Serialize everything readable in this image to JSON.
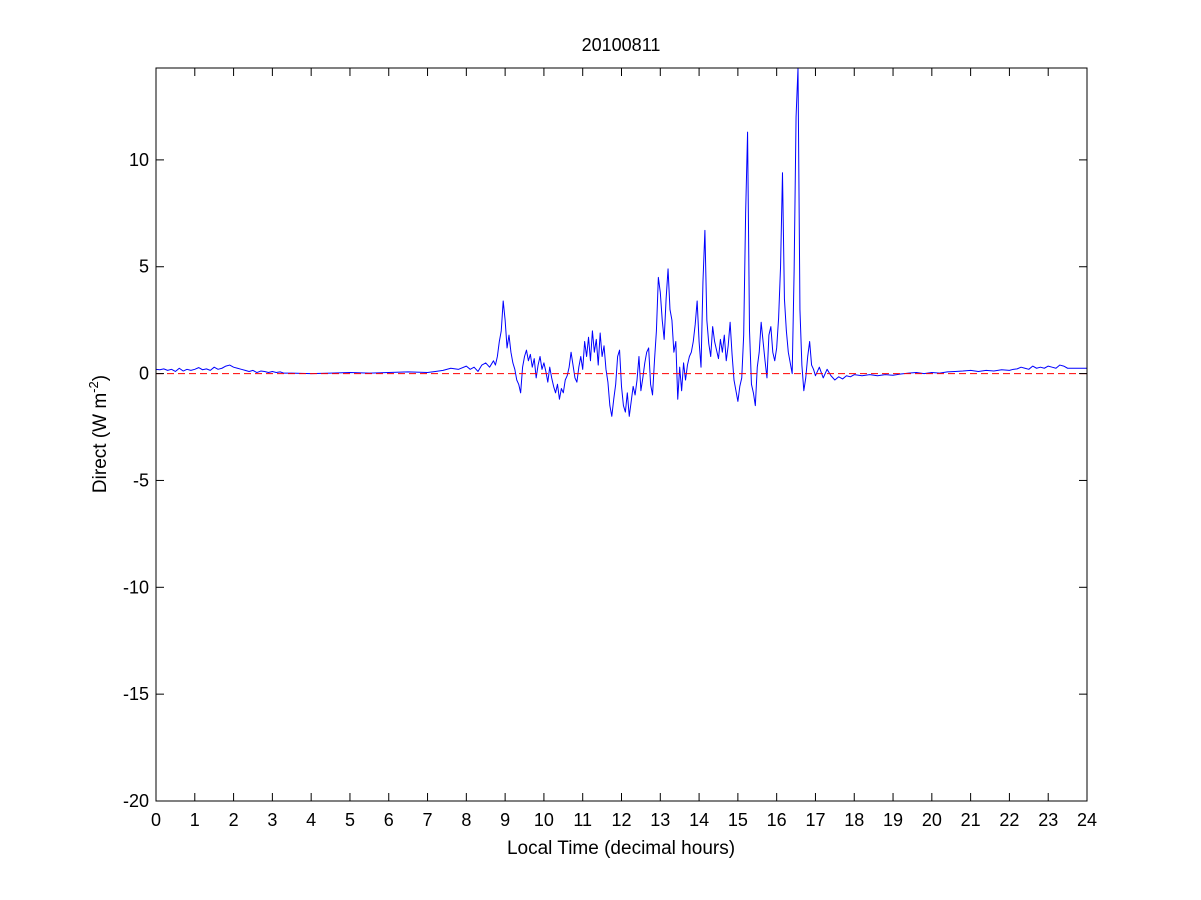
{
  "chart_data": {
    "type": "line",
    "title": "20100811",
    "xlabel": "Local Time (decimal hours)",
    "ylabel": {
      "base": "Direct (W m",
      "superscript": "-2",
      "suffix": ")"
    },
    "xlim": [
      0,
      24
    ],
    "ylim": [
      -20,
      14.3
    ],
    "xticks": [
      0,
      1,
      2,
      3,
      4,
      5,
      6,
      7,
      8,
      9,
      10,
      11,
      12,
      13,
      14,
      15,
      16,
      17,
      18,
      19,
      20,
      21,
      22,
      23,
      24
    ],
    "yticks": [
      -20,
      -15,
      -10,
      -5,
      0,
      5,
      10
    ],
    "grid": false,
    "colors": {
      "series": "#0000ff",
      "reference": "#ff0000",
      "axes": "#000000",
      "background": "#ffffff"
    },
    "series": [
      {
        "style": "solid",
        "x": [
          0,
          0.1,
          0.2,
          0.3,
          0.4,
          0.5,
          0.6,
          0.7,
          0.8,
          0.9,
          1.0,
          1.1,
          1.2,
          1.3,
          1.4,
          1.5,
          1.6,
          1.7,
          1.8,
          1.9,
          2.0,
          2.1,
          2.2,
          2.3,
          2.4,
          2.5,
          2.6,
          2.7,
          2.8,
          2.9,
          3.0,
          3.1,
          3.2,
          3.3,
          3.5,
          4.0,
          4.5,
          5.0,
          5.5,
          6.0,
          6.5,
          7.0,
          7.2,
          7.4,
          7.6,
          7.8,
          8.0,
          8.1,
          8.2,
          8.3,
          8.4,
          8.5,
          8.6,
          8.7,
          8.75,
          8.8,
          8.85,
          8.9,
          8.95,
          9.0,
          9.05,
          9.1,
          9.15,
          9.2,
          9.25,
          9.3,
          9.35,
          9.4,
          9.45,
          9.5,
          9.55,
          9.6,
          9.65,
          9.7,
          9.75,
          9.8,
          9.85,
          9.9,
          9.95,
          10.0,
          10.05,
          10.1,
          10.15,
          10.2,
          10.25,
          10.3,
          10.35,
          10.4,
          10.45,
          10.5,
          10.55,
          10.6,
          10.65,
          10.7,
          10.75,
          10.8,
          10.85,
          10.9,
          10.95,
          11.0,
          11.05,
          11.1,
          11.15,
          11.2,
          11.25,
          11.3,
          11.35,
          11.4,
          11.45,
          11.5,
          11.55,
          11.6,
          11.65,
          11.7,
          11.75,
          11.8,
          11.85,
          11.9,
          11.95,
          12.0,
          12.05,
          12.1,
          12.15,
          12.2,
          12.25,
          12.3,
          12.35,
          12.4,
          12.45,
          12.5,
          12.55,
          12.6,
          12.65,
          12.7,
          12.75,
          12.8,
          12.85,
          12.9,
          12.95,
          13.0,
          13.05,
          13.1,
          13.15,
          13.2,
          13.25,
          13.3,
          13.35,
          13.4,
          13.45,
          13.5,
          13.55,
          13.6,
          13.65,
          13.7,
          13.75,
          13.8,
          13.85,
          13.9,
          13.95,
          14.0,
          14.05,
          14.1,
          14.15,
          14.2,
          14.25,
          14.3,
          14.35,
          14.4,
          14.45,
          14.5,
          14.55,
          14.6,
          14.65,
          14.7,
          14.75,
          14.8,
          14.85,
          14.9,
          14.95,
          15.0,
          15.05,
          15.1,
          15.15,
          15.2,
          15.25,
          15.3,
          15.35,
          15.4,
          15.45,
          15.5,
          15.55,
          15.6,
          15.65,
          15.7,
          15.75,
          15.8,
          15.85,
          15.9,
          15.95,
          16.0,
          16.05,
          16.1,
          16.15,
          16.2,
          16.25,
          16.3,
          16.35,
          16.4,
          16.45,
          16.5,
          16.55,
          16.6,
          16.65,
          16.7,
          16.75,
          16.8,
          16.85,
          16.9,
          16.95,
          17.0,
          17.1,
          17.2,
          17.3,
          17.4,
          17.5,
          17.6,
          17.7,
          17.8,
          17.9,
          18.0,
          18.2,
          18.4,
          18.6,
          18.8,
          19.0,
          19.2,
          19.4,
          19.6,
          19.8,
          20.0,
          20.2,
          20.4,
          20.6,
          20.8,
          21.0,
          21.2,
          21.4,
          21.6,
          21.8,
          22.0,
          22.1,
          22.2,
          22.3,
          22.4,
          22.5,
          22.6,
          22.7,
          22.8,
          22.9,
          23.0,
          23.1,
          23.2,
          23.3,
          23.4,
          23.5,
          24.0
        ],
        "y": [
          0.2,
          0.18,
          0.22,
          0.15,
          0.2,
          0.1,
          0.25,
          0.12,
          0.2,
          0.15,
          0.2,
          0.28,
          0.18,
          0.22,
          0.15,
          0.3,
          0.2,
          0.25,
          0.35,
          0.4,
          0.3,
          0.25,
          0.2,
          0.15,
          0.1,
          0.15,
          0.05,
          0.12,
          0.1,
          0.05,
          0.1,
          0.05,
          0.08,
          0.02,
          0.02,
          0.0,
          0.02,
          0.05,
          0.02,
          0.05,
          0.08,
          0.05,
          0.1,
          0.15,
          0.25,
          0.2,
          0.35,
          0.2,
          0.3,
          0.1,
          0.4,
          0.5,
          0.3,
          0.6,
          0.4,
          0.8,
          1.5,
          2.0,
          3.4,
          2.5,
          1.2,
          1.8,
          1.0,
          0.5,
          0.2,
          -0.3,
          -0.5,
          -0.9,
          0.3,
          0.8,
          1.1,
          0.6,
          0.9,
          0.3,
          0.7,
          -0.2,
          0.4,
          0.8,
          0.2,
          0.5,
          0.1,
          -0.4,
          0.3,
          -0.2,
          -0.6,
          -0.9,
          -0.5,
          -1.2,
          -0.7,
          -0.9,
          -0.3,
          -0.1,
          0.3,
          1.0,
          0.4,
          -0.2,
          -0.4,
          0.3,
          0.8,
          0.2,
          1.5,
          0.8,
          1.7,
          0.6,
          2.0,
          1.0,
          1.6,
          0.4,
          1.9,
          0.8,
          1.3,
          0.2,
          -0.4,
          -1.5,
          -2.0,
          -1.2,
          -0.5,
          0.8,
          1.1,
          -0.6,
          -1.5,
          -1.8,
          -0.9,
          -2.0,
          -1.3,
          -0.6,
          -1.0,
          -0.3,
          0.8,
          -0.8,
          -0.2,
          0.5,
          1.0,
          1.2,
          -0.5,
          -1.0,
          0.6,
          2.0,
          4.5,
          3.8,
          2.5,
          1.6,
          3.5,
          4.9,
          3.0,
          2.5,
          1.0,
          1.5,
          -1.2,
          0.3,
          -0.8,
          0.5,
          -0.3,
          0.4,
          0.8,
          1.0,
          1.5,
          2.3,
          3.4,
          1.5,
          0.3,
          4.3,
          6.7,
          2.5,
          1.4,
          0.8,
          2.2,
          1.5,
          1.1,
          0.7,
          1.6,
          1.0,
          1.8,
          0.6,
          1.3,
          2.4,
          0.9,
          -0.3,
          -0.8,
          -1.3,
          -0.6,
          -0.2,
          1.8,
          7.5,
          11.3,
          2.0,
          -0.5,
          -0.9,
          -1.5,
          0.3,
          1.0,
          2.4,
          1.5,
          0.6,
          -0.2,
          1.8,
          2.2,
          1.0,
          0.6,
          1.2,
          2.6,
          5.0,
          9.4,
          3.5,
          2.0,
          1.0,
          0.5,
          0.0,
          4.8,
          12.0,
          14.3,
          3.0,
          0.4,
          -0.8,
          -0.2,
          0.8,
          1.5,
          0.4,
          0.2,
          -0.1,
          0.3,
          -0.2,
          0.2,
          -0.1,
          -0.3,
          -0.15,
          -0.25,
          -0.1,
          -0.15,
          -0.05,
          -0.1,
          -0.05,
          -0.1,
          -0.05,
          -0.08,
          -0.02,
          0.02,
          0.05,
          0.0,
          0.05,
          0.02,
          0.08,
          0.1,
          0.12,
          0.15,
          0.1,
          0.15,
          0.12,
          0.18,
          0.15,
          0.2,
          0.22,
          0.3,
          0.25,
          0.2,
          0.35,
          0.25,
          0.3,
          0.25,
          0.35,
          0.3,
          0.25,
          0.4,
          0.35,
          0.25,
          0.25
        ]
      },
      {
        "style": "dashed",
        "x": [
          0,
          24
        ],
        "y": [
          0,
          0
        ]
      }
    ]
  }
}
